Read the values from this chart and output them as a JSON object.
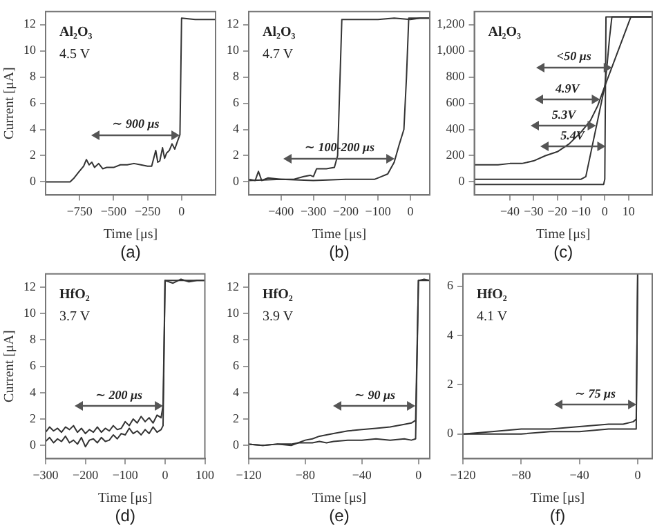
{
  "chart_data": [
    {
      "type": "line",
      "xlabel": "Time [μs]",
      "ylabel": "Current [μA]",
      "xlim": [
        -1000,
        250
      ],
      "ylim": [
        -1,
        13
      ],
      "xticks": [
        -750,
        -500,
        -250,
        0
      ],
      "yticks": [
        0,
        2,
        4,
        6,
        8,
        10,
        12
      ],
      "grid": false,
      "series": [
        {
          "color": "#333333",
          "x": [
            -1000,
            -900,
            -820,
            -790,
            -760,
            -720,
            -700,
            -680,
            -660,
            -640,
            -610,
            -580,
            -550,
            -500,
            -450,
            -400,
            -350,
            -300,
            -250,
            -220,
            -190,
            -175,
            -160,
            -140,
            -125,
            -110,
            -90,
            -70,
            -50,
            -30,
            -12,
            0,
            5,
            100,
            250
          ],
          "values": [
            0.0,
            0.0,
            0.0,
            0.3,
            0.7,
            1.2,
            1.7,
            1.3,
            1.5,
            1.1,
            1.4,
            1.0,
            1.1,
            1.1,
            1.3,
            1.3,
            1.4,
            1.3,
            1.2,
            1.2,
            2.4,
            1.5,
            1.6,
            2.6,
            1.8,
            2.2,
            2.4,
            2.9,
            2.5,
            3.1,
            3.6,
            12.5,
            12.5,
            12.4,
            12.4
          ]
        }
      ],
      "annotations": [
        "Al₂O₃",
        "4.5 V",
        {
          "text": "∼ 900 μs",
          "x": -12,
          "y": 3.6
        },
        "(a)"
      ]
    },
    {
      "type": "line",
      "xlabel": "Time [μs]",
      "xlim": [
        -500,
        60
      ],
      "ylim": [
        -1,
        13
      ],
      "xticks": [
        -400,
        -300,
        -200,
        -100,
        0
      ],
      "yticks": [
        0,
        2,
        4,
        6,
        8,
        10,
        12
      ],
      "grid": false,
      "series": [
        {
          "color": "#333333",
          "x": [
            -500,
            -480,
            -470,
            -460,
            -440,
            -400,
            -360,
            -330,
            -310,
            -300,
            -290,
            -260,
            -235,
            -225,
            -212,
            -205,
            -150,
            -100,
            -50,
            0,
            30,
            60
          ],
          "values": [
            0.2,
            0.1,
            0.8,
            0.1,
            0.3,
            0.2,
            0.2,
            0.4,
            0.5,
            0.4,
            1.0,
            1.0,
            1.1,
            2.0,
            12.4,
            12.4,
            12.4,
            12.4,
            12.5,
            12.4,
            12.5,
            12.5
          ]
        },
        {
          "color": "#333333",
          "x": [
            -500,
            -400,
            -300,
            -200,
            -150,
            -110,
            -90,
            -70,
            -50,
            -35,
            -20,
            -12,
            -5,
            10,
            60
          ],
          "values": [
            0.1,
            0.2,
            0.1,
            0.2,
            0.2,
            0.2,
            0.4,
            0.6,
            1.5,
            2.8,
            4.0,
            8.0,
            12.5,
            12.5,
            12.5
          ]
        }
      ],
      "annotations": [
        "Al₂O₃",
        "4.7 V",
        {
          "text": "∼ 100-200 μs",
          "x": -47,
          "y": 1.8
        },
        "(b)"
      ]
    },
    {
      "type": "line",
      "xlabel": "Time [μs]",
      "xlim": [
        -55,
        20
      ],
      "ylim": [
        -100,
        1300
      ],
      "xticks": [
        -40,
        -30,
        -20,
        -10,
        0,
        10
      ],
      "yticks": [
        0,
        200,
        400,
        600,
        800,
        {
          "value": 1000,
          "label": "1,000"
        },
        {
          "value": 1200,
          "label": "1,200"
        }
      ],
      "grid": false,
      "series": [
        {
          "color": "#333333",
          "x": [
            -55,
            -45,
            -40,
            -35,
            -30,
            -25,
            -20,
            -15,
            -10,
            -6,
            -3,
            0,
            1,
            2,
            3,
            20
          ],
          "values": [
            130,
            130,
            140,
            140,
            160,
            200,
            230,
            290,
            380,
            470,
            580,
            730,
            900,
            1100,
            1260,
            1260
          ]
        },
        {
          "color": "#333333",
          "x": [
            -55,
            -40,
            -20,
            -10,
            -8,
            0,
            11,
            20
          ],
          "values": [
            20,
            20,
            20,
            20,
            40,
            730,
            1260,
            1260
          ]
        },
        {
          "color": "#333333",
          "x": [
            -55,
            -40,
            -20,
            -5,
            -0.5,
            0,
            0.5,
            20
          ],
          "values": [
            -20,
            -20,
            -20,
            -20,
            -20,
            20,
            1260,
            1260
          ]
        }
      ],
      "annotations": [
        "Al₂O₃",
        {
          "text": "<50 μs",
          "x": 3,
          "y": 875
        },
        {
          "text": "4.9V",
          "x": -2,
          "y": 630
        },
        {
          "text": "5.3V",
          "x": -3.5,
          "y": 430
        },
        {
          "text": "5.4V",
          "x": 0.1,
          "y": 270
        },
        "(c)"
      ]
    },
    {
      "type": "line",
      "xlabel": "Time [μs]",
      "ylabel": "Current [μA]",
      "xlim": [
        -300,
        100
      ],
      "ylim": [
        -1,
        13
      ],
      "xticks": [
        -300,
        -200,
        -100,
        0,
        100
      ],
      "yticks": [
        0,
        2,
        4,
        6,
        8,
        10,
        12
      ],
      "grid": false,
      "series": [
        {
          "color": "#333333",
          "x": [
            -300,
            -290,
            -280,
            -270,
            -260,
            -250,
            -240,
            -230,
            -220,
            -210,
            -200,
            -190,
            -180,
            -170,
            -160,
            -150,
            -140,
            -130,
            -120,
            -110,
            -100,
            -90,
            -80,
            -70,
            -60,
            -50,
            -40,
            -30,
            -20,
            -10,
            -5,
            0,
            20,
            40,
            60,
            80,
            100
          ],
          "values": [
            1.0,
            1.4,
            1.1,
            1.3,
            1.0,
            1.4,
            1.2,
            1.5,
            1.0,
            1.3,
            0.9,
            1.2,
            1.0,
            1.4,
            1.0,
            1.3,
            1.1,
            1.5,
            1.2,
            1.3,
            1.8,
            1.5,
            2.0,
            1.7,
            2.2,
            1.8,
            2.1,
            1.7,
            2.3,
            2.1,
            3.0,
            12.5,
            12.3,
            12.6,
            12.4,
            12.5,
            12.5
          ]
        },
        {
          "color": "#333333",
          "x": [
            -300,
            -290,
            -280,
            -270,
            -260,
            -250,
            -240,
            -230,
            -220,
            -210,
            -200,
            -190,
            -180,
            -170,
            -160,
            -150,
            -140,
            -130,
            -120,
            -110,
            -100,
            -90,
            -80,
            -70,
            -60,
            -50,
            -40,
            -30,
            -20,
            -10,
            -5,
            0,
            20,
            40,
            60,
            80,
            100
          ],
          "values": [
            0.3,
            0.6,
            0.2,
            0.5,
            0.3,
            0.7,
            0.2,
            0.4,
            0.1,
            0.6,
            -0.1,
            0.4,
            0.5,
            0.2,
            0.6,
            0.3,
            0.4,
            0.8,
            0.5,
            0.9,
            0.8,
            1.3,
            0.9,
            1.1,
            0.8,
            1.2,
            0.9,
            1.4,
            1.0,
            1.2,
            1.5,
            12.5,
            12.5,
            12.5,
            12.5,
            12.5,
            12.5
          ]
        }
      ],
      "annotations": [
        "HfO₂",
        "3.7 V",
        {
          "text": "∼ 200 μs",
          "x": -5,
          "y": 3.0
        },
        "(d)"
      ]
    },
    {
      "type": "line",
      "xlabel": "Time [μs]",
      "xlim": [
        -120,
        8
      ],
      "ylim": [
        -1,
        13
      ],
      "xticks": [
        -120,
        -80,
        -40,
        0
      ],
      "yticks": [
        0,
        2,
        4,
        6,
        8,
        10,
        12
      ],
      "grid": false,
      "series": [
        {
          "color": "#333333",
          "x": [
            -120,
            -110,
            -100,
            -90,
            -85,
            -80,
            -75,
            -70,
            -65,
            -60,
            -50,
            -40,
            -30,
            -20,
            -10,
            -5,
            -2,
            0,
            4,
            8
          ],
          "values": [
            0.1,
            0.0,
            0.1,
            0.1,
            0.2,
            0.4,
            0.5,
            0.7,
            0.8,
            0.9,
            1.1,
            1.2,
            1.3,
            1.4,
            1.6,
            1.7,
            1.9,
            12.5,
            12.6,
            12.5
          ]
        },
        {
          "color": "#333333",
          "x": [
            -120,
            -110,
            -100,
            -90,
            -85,
            -80,
            -75,
            -70,
            -65,
            -60,
            -50,
            -40,
            -30,
            -20,
            -10,
            -5,
            -2,
            0,
            4,
            8
          ],
          "values": [
            0.1,
            0.0,
            0.1,
            0.0,
            0.2,
            0.2,
            0.2,
            0.3,
            0.2,
            0.3,
            0.4,
            0.4,
            0.5,
            0.4,
            0.5,
            0.4,
            0.5,
            12.5,
            12.5,
            12.5
          ]
        }
      ],
      "annotations": [
        "HfO₂",
        "3.9 V",
        {
          "text": "∼ 90 μs",
          "x": -1.8,
          "y": 3.0
        },
        "(e)"
      ]
    },
    {
      "type": "line",
      "xlabel": "Time [μs]",
      "xlim": [
        -120,
        10
      ],
      "ylim": [
        -1,
        6.5
      ],
      "xticks": [
        -120,
        -80,
        -40,
        0
      ],
      "yticks": [
        0,
        2,
        4,
        6
      ],
      "grid": false,
      "series": [
        {
          "color": "#333333",
          "x": [
            -120,
            -100,
            -80,
            -60,
            -40,
            -20,
            -10,
            -3,
            -1,
            0
          ],
          "values": [
            0.0,
            0.1,
            0.2,
            0.2,
            0.3,
            0.4,
            0.4,
            0.5,
            0.6,
            6.5
          ]
        },
        {
          "color": "#333333",
          "x": [
            -120,
            -100,
            -80,
            -60,
            -40,
            -20,
            -10,
            -3,
            -1,
            0
          ],
          "values": [
            0,
            0.0,
            0.0,
            0.1,
            0.1,
            0.2,
            0.2,
            0.2,
            0.2,
            6.5
          ]
        }
      ],
      "annotations": [
        "HfO₂",
        "4.1 V",
        {
          "text": "∼ 75 μs",
          "x": -0.9,
          "y": 1.2
        },
        "(f)"
      ]
    }
  ]
}
